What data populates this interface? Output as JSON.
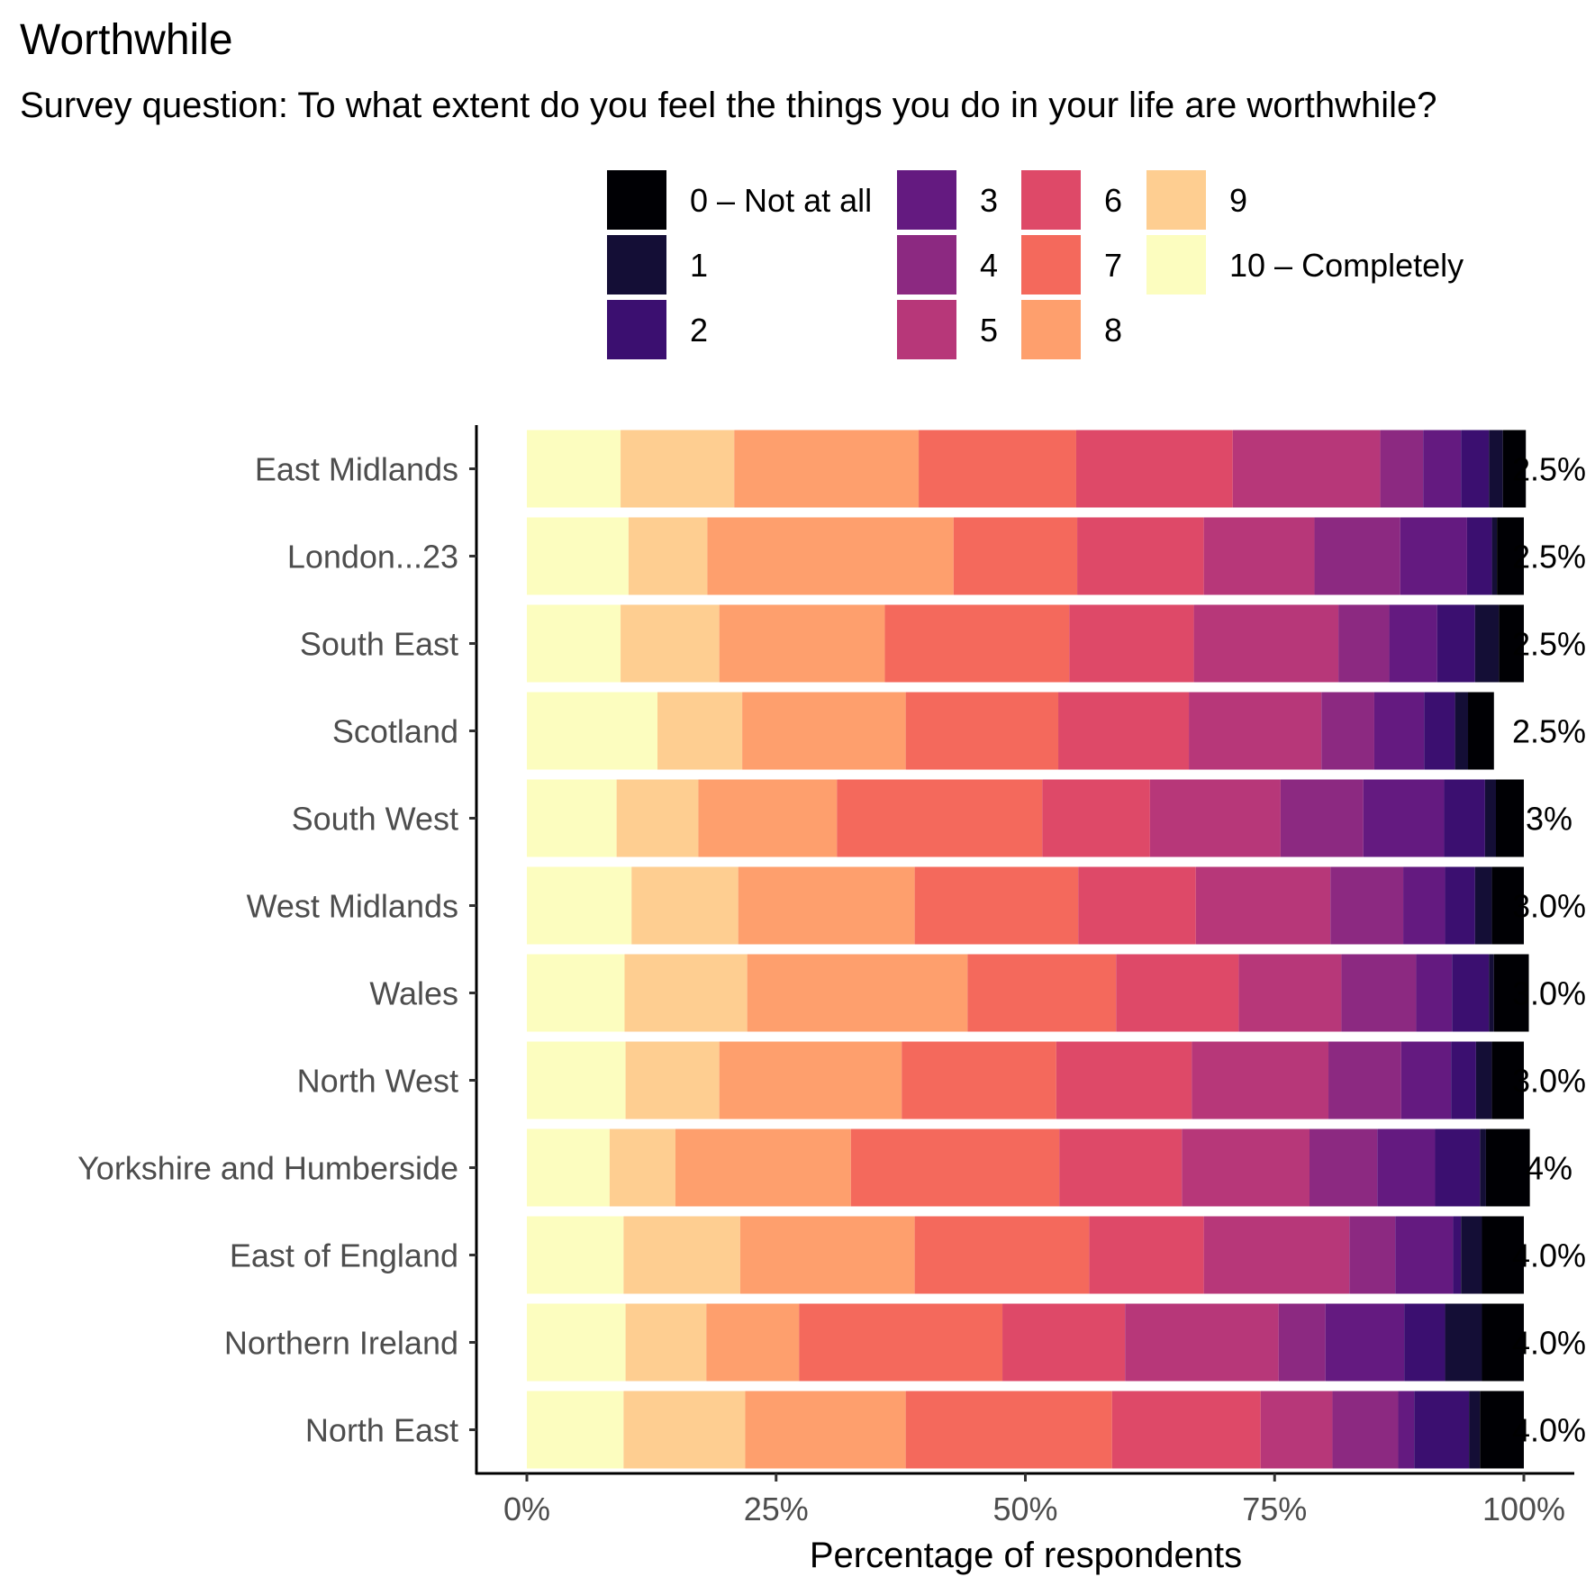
{
  "chart_data": {
    "type": "bar",
    "orientation": "horizontal",
    "stacked": true,
    "percent": true,
    "title": "Worthwhile",
    "subtitle": "Survey question: To what extent do you feel the things you do in your life are worthwhile?",
    "xlabel": "Percentage of respondents",
    "ylabel": "",
    "xlim": [
      0,
      100
    ],
    "x_ticks": [
      "0%",
      "25%",
      "50%",
      "75%",
      "100%"
    ],
    "grid": false,
    "legend_position": "top",
    "categories": [
      "East Midlands",
      "London...23",
      "South East",
      "Scotland",
      "South West",
      "West Midlands",
      "Wales",
      "North West",
      "Yorkshire and Humberside",
      "East of England",
      "Northern Ireland",
      "North East"
    ],
    "data_labels": [
      "2.5%",
      "2.5%",
      "2.5%",
      "2.5%",
      "3%",
      "3.0%",
      "3.0%",
      "3.0%",
      "4%",
      "4.0%",
      "4.0%",
      "4.0%"
    ],
    "series": [
      {
        "name": "10 – Completely",
        "color": "#FCFDBF",
        "values": [
          9.4,
          10.2,
          9.4,
          13.1,
          9.0,
          10.5,
          9.8,
          9.9,
          8.3,
          9.7,
          9.9,
          9.7
        ]
      },
      {
        "name": "9",
        "color": "#FECE91",
        "values": [
          11.4,
          7.9,
          9.9,
          8.5,
          8.2,
          10.7,
          12.3,
          9.4,
          6.6,
          11.7,
          8.1,
          12.2
        ]
      },
      {
        "name": "8",
        "color": "#FE9F6D",
        "values": [
          18.5,
          24.7,
          16.6,
          16.4,
          13.9,
          17.7,
          22.1,
          18.3,
          17.6,
          17.5,
          9.3,
          16.1
        ]
      },
      {
        "name": "7",
        "color": "#F4695C",
        "values": [
          15.8,
          12.4,
          18.5,
          15.3,
          20.6,
          16.4,
          14.9,
          15.5,
          20.9,
          17.5,
          20.4,
          20.7
        ]
      },
      {
        "name": "6",
        "color": "#DE4968",
        "values": [
          15.7,
          12.7,
          12.5,
          13.1,
          10.8,
          11.8,
          12.3,
          13.6,
          12.3,
          11.5,
          12.3,
          14.9
        ]
      },
      {
        "name": "5",
        "color": "#B73779",
        "values": [
          14.8,
          11.1,
          14.5,
          13.3,
          13.1,
          13.5,
          10.3,
          13.7,
          12.8,
          14.6,
          15.4,
          7.2
        ]
      },
      {
        "name": "4",
        "color": "#8C2981",
        "values": [
          4.3,
          8.6,
          5.1,
          5.3,
          8.3,
          7.3,
          7.5,
          7.3,
          6.8,
          4.6,
          4.7,
          6.6
        ]
      },
      {
        "name": "3",
        "color": "#641A80",
        "values": [
          3.8,
          6.7,
          4.8,
          5.0,
          8.1,
          4.2,
          3.6,
          5.0,
          5.8,
          5.8,
          7.9,
          1.6
        ]
      },
      {
        "name": "2",
        "color": "#3B0F70",
        "values": [
          2.8,
          2.5,
          3.8,
          3.1,
          4.1,
          3.0,
          3.7,
          2.5,
          4.5,
          0.8,
          4.1,
          5.5
        ]
      },
      {
        "name": "1",
        "color": "#140E36",
        "values": [
          1.4,
          0.5,
          2.4,
          1.3,
          1.1,
          1.7,
          0.5,
          1.6,
          0.6,
          2.1,
          3.7,
          1.1
        ]
      },
      {
        "name": "0 – Not at all",
        "color": "#000004",
        "values": [
          2.3,
          2.7,
          2.5,
          2.6,
          2.8,
          3.2,
          3.5,
          3.2,
          4.4,
          4.2,
          4.2,
          4.4
        ]
      }
    ],
    "legend_order": [
      "0 – Not at all",
      "1",
      "2",
      "3",
      "4",
      "5",
      "6",
      "7",
      "8",
      "9",
      "10 – Completely"
    ]
  }
}
